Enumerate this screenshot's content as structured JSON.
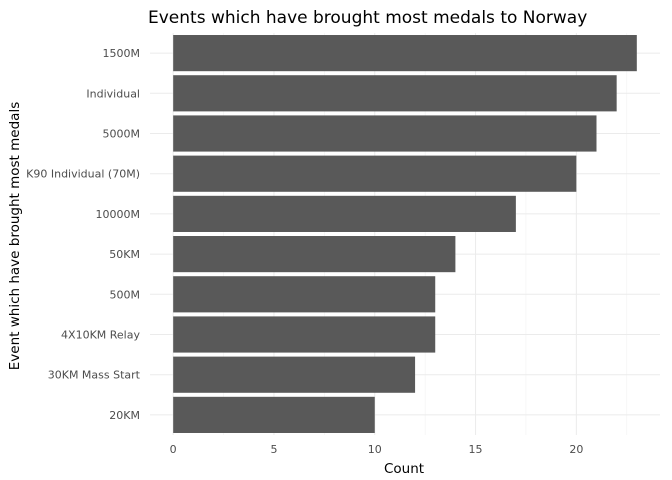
{
  "chart_data": {
    "type": "bar",
    "orientation": "horizontal",
    "title": "Events which have brought most medals to Norway",
    "xlabel": "Count",
    "ylabel": "Event which have brought most medals",
    "categories": [
      "1500M",
      "Individual",
      "5000M",
      "K90 Individual (70M)",
      "10000M",
      "50KM",
      "500M",
      "4X10KM Relay",
      "30KM Mass Start",
      "20KM"
    ],
    "values": [
      23,
      22,
      21,
      20,
      17,
      14,
      13,
      13,
      12,
      10
    ],
    "xlim": [
      0,
      23
    ],
    "xticks": [
      0,
      5,
      10,
      15,
      20
    ],
    "grid": true,
    "bar_color": "#595959"
  }
}
